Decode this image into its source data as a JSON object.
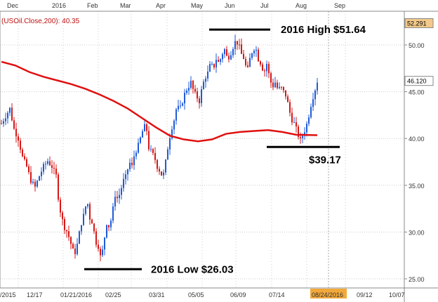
{
  "chart_data": {
    "type": "candlestick",
    "indicator_label": "(USOil.Close,200): 40.35",
    "top_months": [
      "Dec",
      "2016",
      "Feb",
      "Mar",
      "Apr",
      "May",
      "Jun",
      "Jul",
      "Aug",
      "Sep"
    ],
    "bottom_dates": [
      "/2015",
      "12/17",
      "01/21/2016",
      "02/25",
      "03/31",
      "05/05",
      "06/09",
      "07/14",
      "08/24/2016",
      "09/12",
      "10/07"
    ],
    "y_ticks": [
      "25.00",
      "30.00",
      "35.00",
      "40.00",
      "45.00",
      "50.00"
    ],
    "y_range": [
      25,
      52.5
    ],
    "price_tags": [
      {
        "label": "52.291",
        "value": 52.291,
        "fill": "#f2c98a"
      },
      {
        "label": "46.120",
        "value": 46.12,
        "fill": "#ffffff"
      }
    ],
    "annotations": {
      "high": {
        "text": "2016 High   $51.64",
        "value": 51.64
      },
      "low": {
        "text": "2016 Low  $26.03",
        "value": 26.03
      },
      "recent_low": {
        "text": "$39.17",
        "value": 39.17
      }
    },
    "ma_points": [
      [
        0,
        48.2
      ],
      [
        20,
        47.8
      ],
      [
        40,
        47.1
      ],
      [
        60,
        46.6
      ],
      [
        80,
        46.2
      ],
      [
        100,
        45.8
      ],
      [
        120,
        45.3
      ],
      [
        140,
        44.7
      ],
      [
        160,
        44.0
      ],
      [
        180,
        43.2
      ],
      [
        200,
        42.2
      ],
      [
        220,
        41.2
      ],
      [
        240,
        40.3
      ],
      [
        260,
        39.9
      ],
      [
        280,
        39.7
      ],
      [
        300,
        39.9
      ],
      [
        320,
        40.5
      ],
      [
        340,
        40.7
      ],
      [
        360,
        40.8
      ],
      [
        380,
        40.9
      ],
      [
        400,
        40.7
      ],
      [
        420,
        40.4
      ],
      [
        450,
        40.35
      ]
    ],
    "price_points": [
      [
        0,
        41.6
      ],
      [
        6,
        42.4
      ],
      [
        12,
        43.2
      ],
      [
        18,
        41.0
      ],
      [
        24,
        40.0
      ],
      [
        30,
        38.0
      ],
      [
        36,
        37.0
      ],
      [
        42,
        35.5
      ],
      [
        48,
        34.8
      ],
      [
        54,
        36.0
      ],
      [
        60,
        37.0
      ],
      [
        66,
        37.6
      ],
      [
        72,
        37.0
      ],
      [
        78,
        36.0
      ],
      [
        82,
        33.0
      ],
      [
        86,
        31.5
      ],
      [
        90,
        30.5
      ],
      [
        94,
        30.0
      ],
      [
        98,
        29.0
      ],
      [
        102,
        28.0
      ],
      [
        106,
        27.8
      ],
      [
        110,
        29.5
      ],
      [
        114,
        31.0
      ],
      [
        118,
        32.0
      ],
      [
        122,
        33.5
      ],
      [
        126,
        31.5
      ],
      [
        130,
        31.0
      ],
      [
        134,
        29.0
      ],
      [
        138,
        28.5
      ],
      [
        142,
        27.0
      ],
      [
        146,
        29.0
      ],
      [
        150,
        31.0
      ],
      [
        154,
        30.5
      ],
      [
        158,
        32.0
      ],
      [
        162,
        34.0
      ],
      [
        166,
        33.5
      ],
      [
        170,
        34.5
      ],
      [
        174,
        35.5
      ],
      [
        178,
        36.0
      ],
      [
        182,
        37.5
      ],
      [
        186,
        37.0
      ],
      [
        190,
        38.5
      ],
      [
        194,
        39.0
      ],
      [
        198,
        40.0
      ],
      [
        202,
        41.0
      ],
      [
        206,
        41.5
      ],
      [
        210,
        39.0
      ],
      [
        214,
        38.5
      ],
      [
        218,
        38.0
      ],
      [
        222,
        37.0
      ],
      [
        226,
        36.5
      ],
      [
        230,
        35.8
      ],
      [
        234,
        37.5
      ],
      [
        238,
        39.5
      ],
      [
        242,
        41.0
      ],
      [
        246,
        42.0
      ],
      [
        250,
        43.5
      ],
      [
        254,
        43.0
      ],
      [
        258,
        44.0
      ],
      [
        262,
        45.0
      ],
      [
        266,
        45.5
      ],
      [
        270,
        46.0
      ],
      [
        274,
        45.0
      ],
      [
        278,
        44.5
      ],
      [
        282,
        44.0
      ],
      [
        286,
        45.5
      ],
      [
        290,
        46.5
      ],
      [
        294,
        47.0
      ],
      [
        298,
        48.0
      ],
      [
        302,
        47.5
      ],
      [
        306,
        48.5
      ],
      [
        310,
        48.0
      ],
      [
        314,
        49.0
      ],
      [
        318,
        49.5
      ],
      [
        322,
        48.5
      ],
      [
        326,
        49.0
      ],
      [
        330,
        49.8
      ],
      [
        334,
        50.5
      ],
      [
        338,
        50.0
      ],
      [
        342,
        49.0
      ],
      [
        346,
        48.5
      ],
      [
        350,
        47.0
      ],
      [
        354,
        48.5
      ],
      [
        358,
        49.5
      ],
      [
        362,
        49.8
      ],
      [
        366,
        48.5
      ],
      [
        370,
        48.0
      ],
      [
        374,
        47.0
      ],
      [
        378,
        48.0
      ],
      [
        382,
        46.5
      ],
      [
        386,
        45.5
      ],
      [
        390,
        46.0
      ],
      [
        394,
        45.2
      ],
      [
        398,
        45.5
      ],
      [
        402,
        45.0
      ],
      [
        406,
        44.5
      ],
      [
        410,
        43.0
      ],
      [
        414,
        42.0
      ],
      [
        418,
        41.5
      ],
      [
        422,
        40.5
      ],
      [
        426,
        39.8
      ],
      [
        430,
        40.5
      ],
      [
        434,
        41.2
      ],
      [
        438,
        42.5
      ],
      [
        442,
        44.0
      ],
      [
        446,
        45.0
      ],
      [
        450,
        46.12
      ]
    ],
    "colors": {
      "up": "#1f5bd6",
      "down": "#d51818",
      "ma": "#e01010",
      "grid": "#cccccc",
      "vline": "#aaaaaa",
      "axis": "#666666"
    }
  }
}
